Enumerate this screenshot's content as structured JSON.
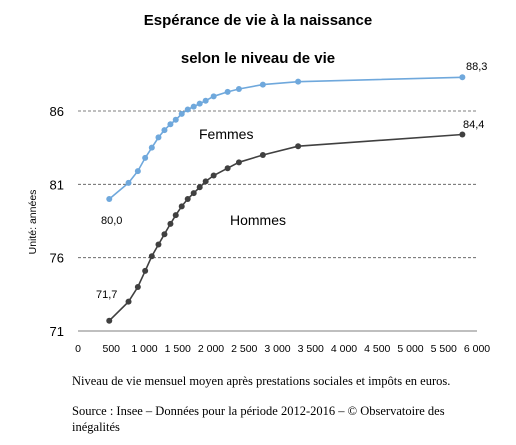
{
  "chart_data": {
    "type": "line",
    "title": "Espérance de vie à la naissance",
    "subtitle": "selon le niveau de vie",
    "ylabel": "Unité: années",
    "xlim": [
      0,
      6000
    ],
    "ylim": [
      71,
      86
    ],
    "xticks": [
      0,
      500,
      1000,
      1500,
      2000,
      2500,
      3000,
      3500,
      4000,
      4500,
      5000,
      5500,
      6000
    ],
    "xtick_labels": [
      "0",
      "500",
      "1 000",
      "1 500",
      "2 000",
      "2 500",
      "3 000",
      "3 500",
      "4 000",
      "4 500",
      "5 000",
      "5 500",
      "6 000"
    ],
    "yticks": [
      71,
      76,
      81,
      86
    ],
    "grid": "horizontal-dashed",
    "series": [
      {
        "name": "Femmes",
        "color": "#6fa8dc",
        "x": [
          470,
          760,
          900,
          1010,
          1110,
          1210,
          1300,
          1390,
          1470,
          1560,
          1650,
          1740,
          1830,
          1920,
          2040,
          2250,
          2420,
          2780,
          3310,
          5780
        ],
        "y": [
          80.0,
          81.1,
          81.9,
          82.8,
          83.5,
          84.2,
          84.7,
          85.1,
          85.4,
          85.8,
          86.1,
          86.3,
          86.5,
          86.7,
          87.0,
          87.3,
          87.5,
          87.8,
          88.0,
          88.3
        ],
        "start_label": "80,0",
        "end_label": "88,3"
      },
      {
        "name": "Hommes",
        "color": "#404040",
        "x": [
          470,
          760,
          900,
          1010,
          1110,
          1210,
          1300,
          1390,
          1470,
          1560,
          1650,
          1740,
          1830,
          1920,
          2040,
          2250,
          2420,
          2780,
          3310,
          5780
        ],
        "y": [
          71.7,
          73.0,
          74.0,
          75.1,
          76.1,
          76.9,
          77.6,
          78.3,
          78.9,
          79.5,
          80.0,
          80.4,
          80.8,
          81.2,
          81.6,
          82.1,
          82.5,
          83.0,
          83.6,
          84.4
        ],
        "start_label": "71,7",
        "end_label": "84,4"
      }
    ]
  },
  "caption": {
    "line1": "Niveau de vie mensuel moyen après prestations sociales et impôts en euros.",
    "line2": "Source : Insee – Données pour la période 2012-2016 – © Observatoire des inégalités"
  }
}
